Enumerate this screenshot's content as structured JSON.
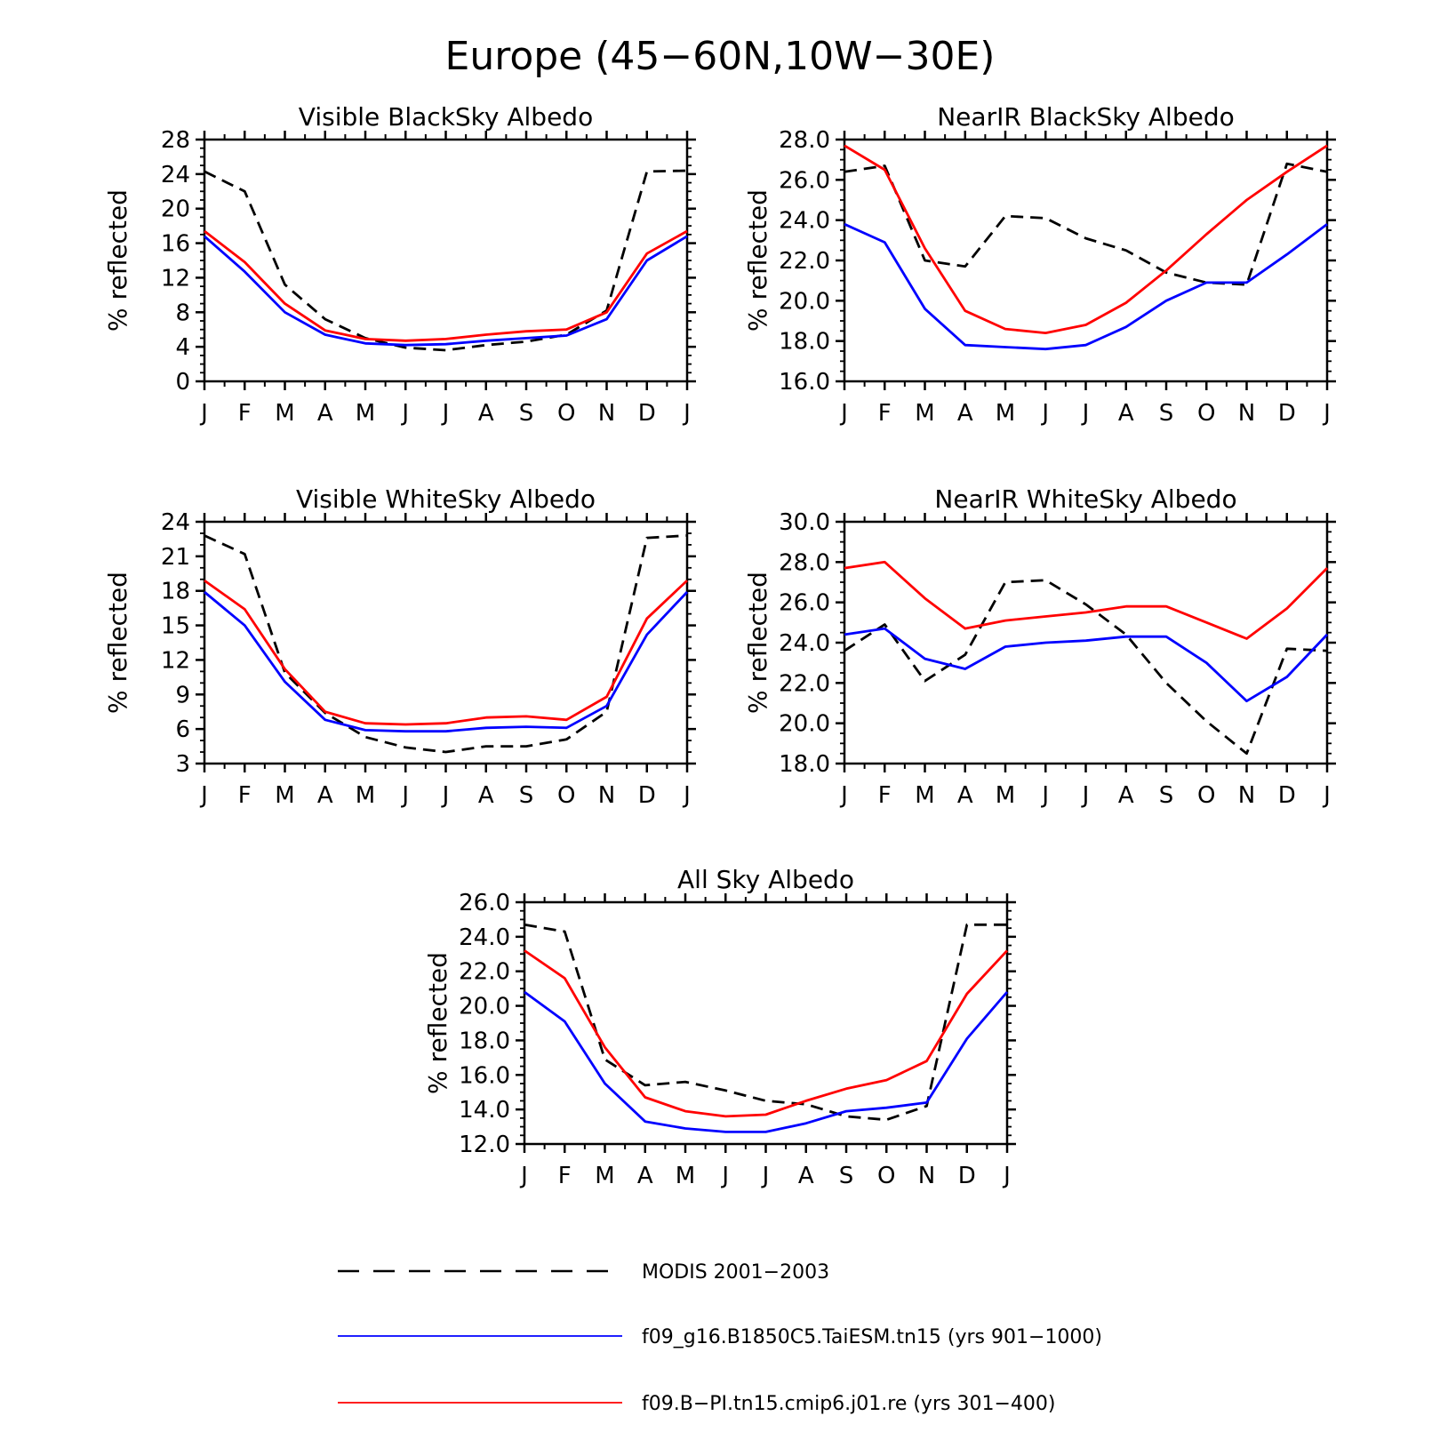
{
  "figure": {
    "title": "Europe (45−60N,10W−30E)"
  },
  "legend": {
    "entries": [
      {
        "label": "MODIS 2001−2003",
        "color": "#000000",
        "style": "dashed"
      },
      {
        "label": "f09_g16.B1850C5.TaiESM.tn15 (yrs 901−1000)",
        "color": "#0000ff",
        "style": "solid"
      },
      {
        "label": "f09.B−PI.tn15.cmip6.j01.re (yrs 301−400)",
        "color": "#ff0000",
        "style": "solid"
      }
    ]
  },
  "chart_data": [
    {
      "type": "line",
      "title": "Visible BlackSky Albedo",
      "ylabel": "% reflected",
      "xlabel": "",
      "x": [
        "J",
        "F",
        "M",
        "A",
        "M",
        "J",
        "J",
        "A",
        "S",
        "O",
        "N",
        "D",
        "J"
      ],
      "ylim": [
        0,
        28
      ],
      "yticks": [
        "0",
        "4",
        "8",
        "12",
        "16",
        "20",
        "24",
        "28"
      ],
      "yminor": 1,
      "series": [
        {
          "name": "MODIS 2001−2003",
          "color": "#000000",
          "style": "dashed",
          "values": [
            24.3,
            22.0,
            11.2,
            7.2,
            5.0,
            3.9,
            3.6,
            4.2,
            4.6,
            5.4,
            8.2,
            24.3,
            24.4
          ]
        },
        {
          "name": "f09_g16.B1850C5.TaiESM.tn15 (yrs 901−1000)",
          "color": "#0000ff",
          "style": "solid",
          "values": [
            16.8,
            12.7,
            8.0,
            5.4,
            4.4,
            4.2,
            4.3,
            4.7,
            5.0,
            5.3,
            7.2,
            14.0,
            16.8
          ]
        },
        {
          "name": "f09.B−PI.tn15.cmip6.j01.re (yrs 301−400)",
          "color": "#ff0000",
          "style": "solid",
          "values": [
            17.4,
            13.8,
            9.0,
            5.9,
            4.9,
            4.7,
            4.9,
            5.4,
            5.8,
            6.0,
            8.0,
            14.8,
            17.4
          ]
        }
      ]
    },
    {
      "type": "line",
      "title": "NearIR BlackSky Albedo",
      "ylabel": "% reflected",
      "xlabel": "",
      "x": [
        "J",
        "F",
        "M",
        "A",
        "M",
        "J",
        "J",
        "A",
        "S",
        "O",
        "N",
        "D",
        "J"
      ],
      "ylim": [
        16.0,
        28.0
      ],
      "yticks": [
        "16.0",
        "18.0",
        "20.0",
        "22.0",
        "24.0",
        "26.0",
        "28.0"
      ],
      "yminor": 0.5,
      "series": [
        {
          "name": "MODIS 2001−2003",
          "color": "#000000",
          "style": "dashed",
          "values": [
            26.4,
            26.7,
            22.0,
            21.7,
            24.2,
            24.1,
            23.1,
            22.5,
            21.4,
            20.9,
            20.8,
            26.8,
            26.4
          ]
        },
        {
          "name": "f09_g16.B1850C5.TaiESM.tn15 (yrs 901−1000)",
          "color": "#0000ff",
          "style": "solid",
          "values": [
            23.8,
            22.9,
            19.6,
            17.8,
            17.7,
            17.6,
            17.8,
            18.7,
            20.0,
            20.9,
            20.9,
            22.3,
            23.8
          ]
        },
        {
          "name": "f09.B−PI.tn15.cmip6.j01.re (yrs 301−400)",
          "color": "#ff0000",
          "style": "solid",
          "values": [
            27.7,
            26.5,
            22.6,
            19.5,
            18.6,
            18.4,
            18.8,
            19.9,
            21.5,
            23.3,
            25.0,
            26.4,
            27.7
          ]
        }
      ]
    },
    {
      "type": "line",
      "title": "Visible WhiteSky Albedo",
      "ylabel": "% reflected",
      "xlabel": "",
      "x": [
        "J",
        "F",
        "M",
        "A",
        "M",
        "J",
        "J",
        "A",
        "S",
        "O",
        "N",
        "D",
        "J"
      ],
      "ylim": [
        3,
        24
      ],
      "yticks": [
        "3",
        "6",
        "9",
        "12",
        "15",
        "18",
        "21",
        "24"
      ],
      "yminor": 1,
      "series": [
        {
          "name": "MODIS 2001−2003",
          "color": "#000000",
          "style": "dashed",
          "values": [
            22.8,
            21.2,
            10.9,
            7.4,
            5.3,
            4.4,
            4.0,
            4.5,
            4.5,
            5.1,
            7.5,
            22.6,
            22.8
          ]
        },
        {
          "name": "f09_g16.B1850C5.TaiESM.tn15 (yrs 901−1000)",
          "color": "#0000ff",
          "style": "solid",
          "values": [
            17.9,
            15.0,
            10.1,
            6.8,
            5.9,
            5.8,
            5.8,
            6.1,
            6.2,
            6.1,
            8.0,
            14.2,
            17.9
          ]
        },
        {
          "name": "f09.B−PI.tn15.cmip6.j01.re (yrs 301−400)",
          "color": "#ff0000",
          "style": "solid",
          "values": [
            18.9,
            16.4,
            11.2,
            7.5,
            6.5,
            6.4,
            6.5,
            7.0,
            7.1,
            6.8,
            8.8,
            15.6,
            18.9
          ]
        }
      ]
    },
    {
      "type": "line",
      "title": "NearIR WhiteSky Albedo",
      "ylabel": "% reflected",
      "xlabel": "",
      "x": [
        "J",
        "F",
        "M",
        "A",
        "M",
        "J",
        "J",
        "A",
        "S",
        "O",
        "N",
        "D",
        "J"
      ],
      "ylim": [
        18.0,
        30.0
      ],
      "yticks": [
        "18.0",
        "20.0",
        "22.0",
        "24.0",
        "26.0",
        "28.0",
        "30.0"
      ],
      "yminor": 0.5,
      "series": [
        {
          "name": "MODIS 2001−2003",
          "color": "#000000",
          "style": "dashed",
          "values": [
            23.6,
            24.9,
            22.1,
            23.4,
            27.0,
            27.1,
            25.9,
            24.4,
            22.0,
            20.1,
            18.5,
            23.7,
            23.6
          ]
        },
        {
          "name": "f09_g16.B1850C5.TaiESM.tn15 (yrs 901−1000)",
          "color": "#0000ff",
          "style": "solid",
          "values": [
            24.4,
            24.7,
            23.2,
            22.7,
            23.8,
            24.0,
            24.1,
            24.3,
            24.3,
            23.0,
            21.1,
            22.3,
            24.4
          ]
        },
        {
          "name": "f09.B−PI.tn15.cmip6.j01.re (yrs 301−400)",
          "color": "#ff0000",
          "style": "solid",
          "values": [
            27.7,
            28.0,
            26.2,
            24.7,
            25.1,
            25.3,
            25.5,
            25.8,
            25.8,
            25.0,
            24.2,
            25.7,
            27.7
          ]
        }
      ]
    },
    {
      "type": "line",
      "title": "All Sky Albedo",
      "ylabel": "% reflected",
      "xlabel": "",
      "x": [
        "J",
        "F",
        "M",
        "A",
        "M",
        "J",
        "J",
        "A",
        "S",
        "O",
        "N",
        "D",
        "J"
      ],
      "ylim": [
        12.0,
        26.0
      ],
      "yticks": [
        "12.0",
        "14.0",
        "16.0",
        "18.0",
        "20.0",
        "22.0",
        "24.0",
        "26.0"
      ],
      "yminor": 0.5,
      "series": [
        {
          "name": "MODIS 2001−2003",
          "color": "#000000",
          "style": "dashed",
          "values": [
            24.7,
            24.3,
            16.9,
            15.4,
            15.6,
            15.1,
            14.5,
            14.3,
            13.6,
            13.4,
            14.2,
            24.7,
            24.7
          ]
        },
        {
          "name": "f09_g16.B1850C5.TaiESM.tn15 (yrs 901−1000)",
          "color": "#0000ff",
          "style": "solid",
          "values": [
            20.8,
            19.1,
            15.5,
            13.3,
            12.9,
            12.7,
            12.7,
            13.2,
            13.9,
            14.1,
            14.4,
            18.1,
            20.8
          ]
        },
        {
          "name": "f09.B−PI.tn15.cmip6.j01.re (yrs 301−400)",
          "color": "#ff0000",
          "style": "solid",
          "values": [
            23.2,
            21.6,
            17.6,
            14.7,
            13.9,
            13.6,
            13.7,
            14.5,
            15.2,
            15.7,
            16.8,
            20.7,
            23.2
          ]
        }
      ]
    }
  ]
}
